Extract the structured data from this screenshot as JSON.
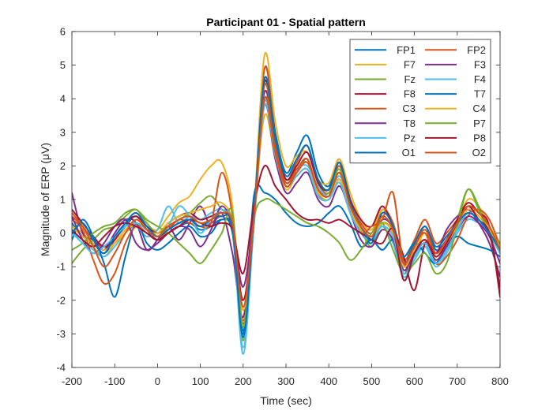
{
  "chart_data": {
    "type": "line",
    "title": "Participant 01 - Spatial pattern",
    "xlabel": "Time (sec)",
    "ylabel": "Magnitude of ERP (μV)",
    "xlim": [
      -200,
      800
    ],
    "ylim": [
      -4,
      6
    ],
    "xticks": [
      -200,
      -100,
      0,
      100,
      200,
      300,
      400,
      500,
      600,
      700,
      800
    ],
    "yticks": [
      -4,
      -3,
      -2,
      -1,
      0,
      1,
      2,
      3,
      4,
      5,
      6
    ],
    "grid": false,
    "legend_position": "top-right",
    "legend_columns": 2,
    "x": [
      -200,
      -175,
      -150,
      -125,
      -100,
      -75,
      -50,
      -25,
      0,
      25,
      50,
      75,
      100,
      125,
      150,
      175,
      200,
      225,
      250,
      275,
      300,
      325,
      350,
      375,
      400,
      425,
      450,
      475,
      500,
      525,
      550,
      575,
      600,
      625,
      650,
      675,
      700,
      725,
      750,
      775,
      800
    ],
    "series": [
      {
        "name": "FP1",
        "color": "#0072BD",
        "values": [
          0.3,
          -0.1,
          -0.3,
          -0.6,
          -0.2,
          0.2,
          0.5,
          0.1,
          -0.2,
          0.0,
          0.2,
          0.3,
          0.1,
          0.2,
          0.4,
          0.1,
          -2.9,
          0.3,
          4.9,
          3.0,
          1.8,
          2.4,
          2.9,
          1.8,
          1.4,
          2.2,
          1.0,
          0.2,
          -0.3,
          0.6,
          0.2,
          -1.0,
          -0.4,
          0.2,
          -0.5,
          -0.2,
          0.2,
          0.6,
          0.4,
          0.0,
          -0.6
        ]
      },
      {
        "name": "FP2",
        "color": "#D95319",
        "values": [
          0.5,
          0.2,
          -0.2,
          -0.4,
          -0.1,
          0.3,
          0.6,
          0.2,
          -0.1,
          0.1,
          0.3,
          0.4,
          0.2,
          0.3,
          0.5,
          0.2,
          -2.6,
          0.2,
          4.9,
          2.8,
          1.6,
          2.1,
          2.6,
          1.5,
          1.2,
          2.0,
          0.9,
          0.3,
          0.0,
          0.7,
          0.3,
          -0.8,
          -0.2,
          0.4,
          -0.3,
          0.0,
          0.4,
          0.8,
          0.6,
          0.2,
          -0.4
        ]
      },
      {
        "name": "F7",
        "color": "#EDB120",
        "values": [
          0.2,
          0.0,
          -0.4,
          -0.7,
          -0.3,
          0.1,
          0.4,
          0.2,
          0.1,
          0.5,
          0.9,
          1.1,
          1.6,
          2.0,
          2.1,
          0.8,
          -2.7,
          0.6,
          5.3,
          3.3,
          2.0,
          2.3,
          2.4,
          1.6,
          1.5,
          2.2,
          1.2,
          0.4,
          0.1,
          0.7,
          0.2,
          -0.9,
          -0.6,
          0.0,
          -0.8,
          -0.5,
          0.3,
          1.0,
          0.8,
          0.2,
          -0.3
        ]
      },
      {
        "name": "F3",
        "color": "#7E2F8E",
        "values": [
          1.2,
          0.0,
          -0.2,
          -0.5,
          0.0,
          0.4,
          0.3,
          -0.5,
          -0.2,
          0.2,
          -0.2,
          0.3,
          0.8,
          0.2,
          0.6,
          -0.6,
          -2.5,
          0.5,
          4.2,
          2.5,
          1.4,
          1.8,
          2.2,
          1.2,
          1.0,
          1.6,
          0.7,
          0.0,
          -0.2,
          0.4,
          0.1,
          -1.2,
          -0.5,
          -0.2,
          -0.6,
          0.1,
          0.5,
          0.7,
          0.3,
          -0.3,
          -1.3
        ]
      },
      {
        "name": "Fz",
        "color": "#77AC30",
        "values": [
          -0.9,
          -0.5,
          -0.2,
          0.1,
          0.2,
          0.5,
          0.7,
          0.3,
          0.0,
          0.2,
          0.4,
          0.6,
          0.9,
          1.1,
          0.7,
          0.3,
          -3.2,
          0.4,
          4.0,
          2.6,
          1.5,
          1.9,
          2.1,
          1.3,
          1.2,
          1.9,
          0.8,
          0.1,
          -0.4,
          0.3,
          0.0,
          -1.1,
          -0.7,
          -0.4,
          -0.9,
          -0.4,
          0.4,
          1.3,
          0.8,
          0.0,
          -0.6
        ]
      },
      {
        "name": "F4",
        "color": "#4DBEEE",
        "values": [
          0.0,
          -0.2,
          -0.5,
          -0.7,
          -0.4,
          0.0,
          0.2,
          -0.1,
          0.1,
          0.8,
          0.3,
          0.5,
          0.4,
          0.6,
          0.7,
          0.2,
          -3.4,
          0.2,
          3.9,
          2.4,
          1.5,
          1.9,
          2.0,
          1.4,
          1.1,
          1.7,
          0.9,
          0.2,
          -0.1,
          0.2,
          -0.3,
          -1.3,
          -0.8,
          -0.4,
          -1.0,
          -0.6,
          0.0,
          0.4,
          0.3,
          0.1,
          -0.5
        ]
      },
      {
        "name": "F8",
        "color": "#A2142F",
        "values": [
          0.7,
          0.3,
          -0.1,
          -0.4,
          -0.2,
          0.3,
          0.5,
          0.2,
          0.0,
          0.3,
          0.5,
          0.6,
          0.4,
          0.5,
          0.6,
          0.3,
          -2.0,
          0.5,
          4.5,
          2.7,
          1.6,
          2.0,
          2.4,
          1.5,
          1.3,
          2.1,
          1.0,
          0.4,
          0.2,
          0.8,
          0.2,
          -0.7,
          -1.7,
          -0.3,
          -0.6,
          -0.2,
          0.4,
          0.9,
          0.6,
          0.2,
          -1.9
        ]
      },
      {
        "name": "T7",
        "color": "#0072BD",
        "values": [
          -0.2,
          0.4,
          -0.1,
          -0.9,
          -1.9,
          -0.7,
          0.3,
          -0.3,
          -0.5,
          -0.3,
          0.0,
          0.2,
          -0.1,
          0.0,
          0.4,
          0.0,
          -3.0,
          1.1,
          1.2,
          1.0,
          0.6,
          0.3,
          0.2,
          0.3,
          0.6,
          0.8,
          0.3,
          -0.4,
          -0.2,
          -0.5,
          -0.2,
          -0.7,
          -0.3,
          -0.6,
          -0.9,
          -0.4,
          -0.1,
          -0.3,
          -0.4,
          -0.5,
          -0.7
        ]
      },
      {
        "name": "C3",
        "color": "#D95319",
        "values": [
          0.4,
          0.1,
          -0.8,
          -1.5,
          -1.2,
          -0.3,
          0.2,
          0.0,
          -0.2,
          0.1,
          0.4,
          0.3,
          0.2,
          0.3,
          1.8,
          0.5,
          -2.7,
          0.5,
          4.4,
          2.6,
          1.5,
          1.9,
          2.2,
          1.3,
          1.1,
          1.8,
          0.8,
          0.0,
          0.2,
          0.4,
          1.2,
          -0.9,
          -0.4,
          0.0,
          -0.9,
          -0.7,
          -0.2,
          0.5,
          0.7,
          0.4,
          -0.4
        ]
      },
      {
        "name": "C4",
        "color": "#EDB120",
        "values": [
          0.2,
          -0.1,
          -0.3,
          -0.5,
          -0.3,
          0.0,
          0.3,
          0.1,
          0.0,
          0.3,
          0.5,
          0.6,
          0.7,
          0.8,
          0.9,
          0.3,
          -2.3,
          0.4,
          3.5,
          2.2,
          1.3,
          1.7,
          1.9,
          1.2,
          1.0,
          1.6,
          0.7,
          0.1,
          -0.1,
          0.3,
          0.0,
          -1.0,
          -0.5,
          -0.2,
          -0.7,
          -0.3,
          0.2,
          0.7,
          0.5,
          0.1,
          -0.4
        ]
      },
      {
        "name": "T8",
        "color": "#7E2F8E",
        "values": [
          0.5,
          -0.2,
          -0.6,
          -0.3,
          0.2,
          0.4,
          -0.3,
          -0.5,
          -0.3,
          0.0,
          0.2,
          0.1,
          -0.4,
          0.1,
          0.8,
          0.2,
          -1.6,
          0.6,
          3.8,
          2.2,
          1.2,
          1.5,
          1.8,
          1.0,
          0.8,
          1.4,
          0.6,
          -0.2,
          -0.4,
          0.1,
          -0.2,
          -1.1,
          -0.6,
          -0.3,
          -0.8,
          -0.4,
          0.1,
          0.5,
          0.3,
          -0.1,
          -0.9
        ]
      },
      {
        "name": "P7",
        "color": "#77AC30",
        "values": [
          -0.5,
          -0.3,
          0.0,
          0.2,
          0.3,
          0.6,
          0.7,
          0.4,
          0.2,
          0.0,
          -0.3,
          -0.6,
          -0.9,
          -0.5,
          0.0,
          0.6,
          -2.8,
          0.4,
          1.0,
          0.9,
          0.7,
          0.5,
          0.3,
          0.2,
          0.0,
          -0.3,
          -0.8,
          -0.5,
          0.0,
          0.3,
          -0.5,
          -1.2,
          -0.9,
          -0.6,
          -1.2,
          -0.9,
          0.2,
          1.3,
          0.7,
          0.0,
          -0.3
        ]
      },
      {
        "name": "Pz",
        "color": "#4DBEEE",
        "values": [
          0.0,
          -0.3,
          -0.6,
          -0.4,
          -0.1,
          0.2,
          0.3,
          0.1,
          -0.1,
          0.2,
          0.8,
          0.5,
          0.0,
          0.4,
          0.6,
          0.2,
          -3.6,
          0.3,
          3.8,
          2.3,
          1.4,
          1.7,
          1.9,
          1.1,
          1.0,
          1.5,
          0.6,
          0.0,
          -0.2,
          0.2,
          -0.1,
          -1.2,
          -0.7,
          -0.3,
          -0.9,
          -0.5,
          0.1,
          0.6,
          0.4,
          0.0,
          -0.6
        ]
      },
      {
        "name": "P8",
        "color": "#A2142F",
        "values": [
          0.1,
          -0.2,
          -0.4,
          -0.1,
          0.2,
          0.3,
          0.2,
          0.0,
          -0.2,
          0.0,
          0.2,
          0.4,
          0.3,
          0.2,
          0.3,
          0.1,
          -1.2,
          0.8,
          2.0,
          1.4,
          1.0,
          0.6,
          0.4,
          0.4,
          0.3,
          0.4,
          0.2,
          0.0,
          -0.2,
          -0.3,
          0.1,
          -1.4,
          -0.6,
          -0.2,
          -0.7,
          -0.3,
          0.3,
          0.8,
          0.4,
          0.0,
          -1.6
        ]
      },
      {
        "name": "O1",
        "color": "#0072BD",
        "values": [
          0.0,
          0.3,
          -0.2,
          -0.6,
          -0.1,
          0.3,
          0.6,
          0.2,
          -0.1,
          0.1,
          0.3,
          0.4,
          0.2,
          0.4,
          0.5,
          0.2,
          -3.1,
          0.5,
          4.6,
          2.8,
          1.7,
          2.2,
          2.6,
          1.6,
          1.3,
          2.1,
          0.9,
          0.2,
          -0.2,
          0.6,
          0.2,
          -0.9,
          -0.3,
          0.2,
          -0.4,
          -0.1,
          0.3,
          0.6,
          0.4,
          0.0,
          -0.5
        ]
      },
      {
        "name": "O2",
        "color": "#D95319",
        "values": [
          0.6,
          0.2,
          -0.4,
          -1.0,
          -0.6,
          0.0,
          0.4,
          0.1,
          -0.1,
          0.2,
          0.4,
          0.5,
          0.3,
          0.4,
          0.6,
          0.3,
          -2.2,
          0.4,
          4.0,
          2.4,
          1.4,
          1.8,
          2.1,
          1.3,
          1.1,
          1.8,
          0.8,
          0.2,
          -0.1,
          0.5,
          0.1,
          -0.9,
          -0.4,
          0.1,
          -0.6,
          -0.2,
          0.3,
          0.8,
          0.6,
          0.2,
          -0.5
        ]
      }
    ]
  }
}
